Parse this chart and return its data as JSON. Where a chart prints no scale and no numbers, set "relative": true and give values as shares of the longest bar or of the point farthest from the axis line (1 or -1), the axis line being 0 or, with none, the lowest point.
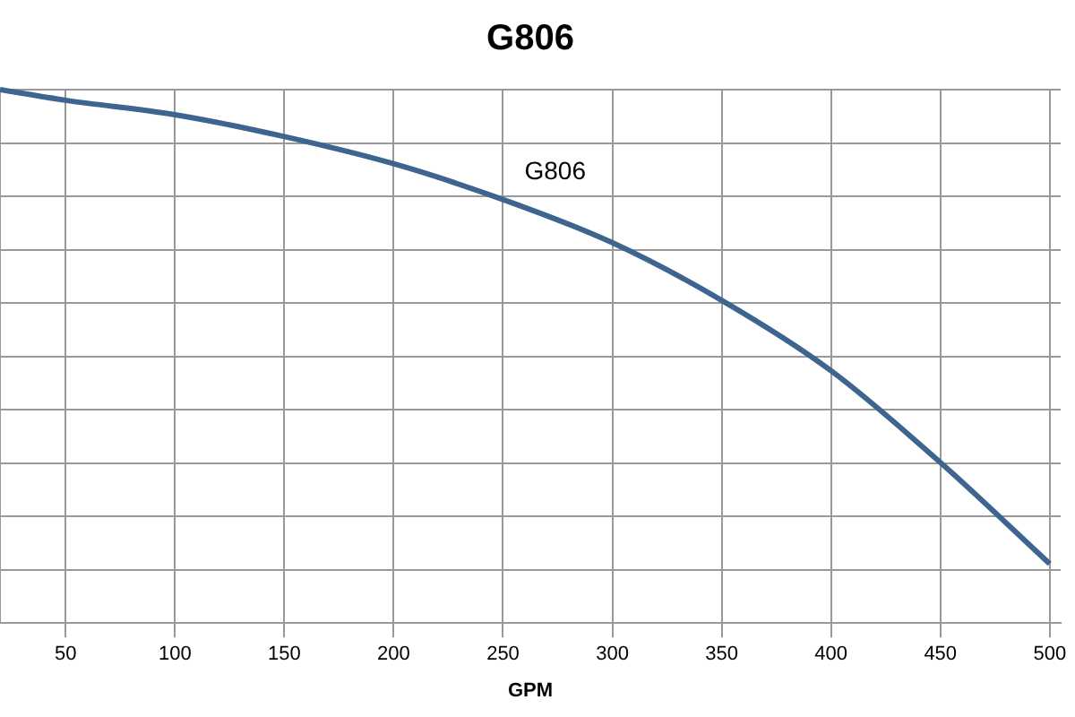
{
  "chart_data": {
    "type": "line",
    "title": "G806",
    "xlabel": "GPM",
    "relative": true,
    "x": [
      20,
      50,
      100,
      150,
      200,
      250,
      300,
      350,
      400,
      450,
      500
    ],
    "xlim": [
      20,
      505
    ],
    "xticks": [
      50,
      100,
      150,
      200,
      250,
      300,
      350,
      400,
      450,
      500
    ],
    "series": [
      {
        "name": "G806",
        "color": "#3d6590",
        "values": [
          1,
          0.98,
          0.953,
          0.912,
          0.861,
          0.794,
          0.713,
          0.605,
          0.473,
          0.301,
          0.111
        ]
      }
    ],
    "grid": true,
    "legend": false,
    "marker": "none",
    "line_style": "solid"
  }
}
